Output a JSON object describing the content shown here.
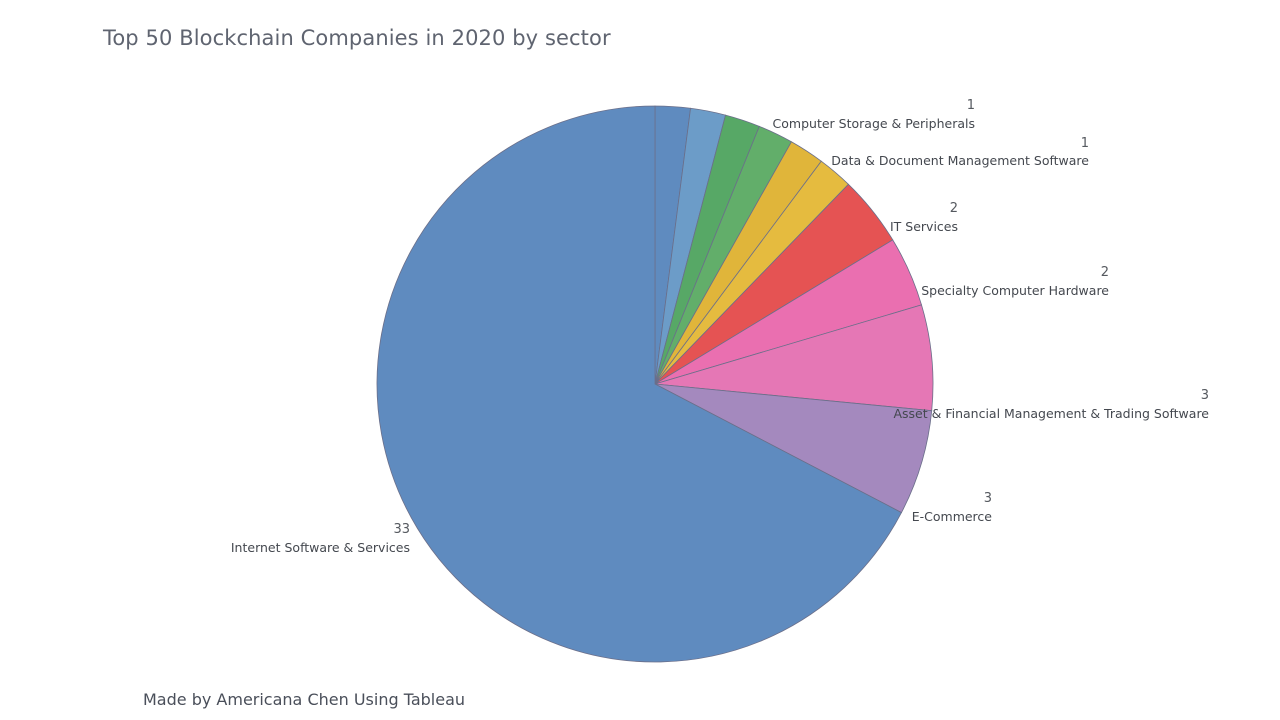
{
  "title": "Top 50 Blockchain Companies in 2020 by sector",
  "footer": "Made by Americana Chen Using Tableau",
  "chart_data": {
    "type": "pie",
    "title": "Top 50 Blockchain Companies in 2020 by sector",
    "slices": [
      {
        "label": "",
        "value": 1,
        "color": "#5f8bbf"
      },
      {
        "label": "",
        "value": 1,
        "color": "#6c9cc8"
      },
      {
        "label": "",
        "value": 1,
        "color": "#57a866"
      },
      {
        "label": "Computer Storage & Peripherals",
        "value": 1,
        "color": "#62ae6a"
      },
      {
        "label": "",
        "value": 1,
        "color": "#e0b53a"
      },
      {
        "label": "Data & Document Management Software",
        "value": 1,
        "color": "#e5bb3f"
      },
      {
        "label": "IT Services",
        "value": 2,
        "color": "#e55353"
      },
      {
        "label": "Specialty Computer Hardware",
        "value": 2,
        "color": "#ea6fb0"
      },
      {
        "label": "Asset & Financial Management & Trading Software",
        "value": 3,
        "color": "#e577b5"
      },
      {
        "label": "E-Commerce",
        "value": 3,
        "color": "#a489be"
      },
      {
        "label": "Internet Software & Services",
        "value": 33,
        "color": "#5f8bbf"
      }
    ]
  }
}
